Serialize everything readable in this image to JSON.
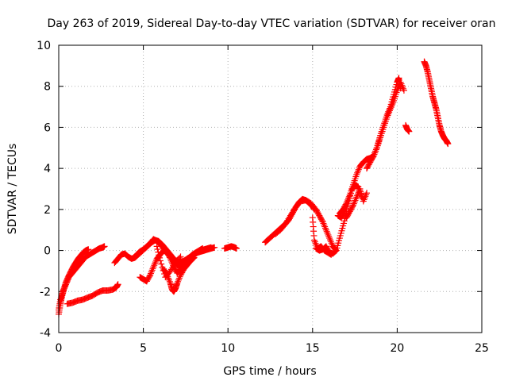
{
  "chart_data": {
    "type": "scatter",
    "title": "Day 263 of 2019, Sidereal Day-to-day VTEC variation (SDTVAR) for receiver oran",
    "xlabel": "GPS time / hours",
    "ylabel": "SDTVAR / TECUs",
    "xlim": [
      0,
      25
    ],
    "ylim": [
      -4,
      10
    ],
    "xticks": [
      "0",
      "5",
      "10",
      "15",
      "20",
      "25"
    ],
    "yticks": [
      "-4",
      "-2",
      "0",
      "2",
      "4",
      "6",
      "8",
      "10"
    ],
    "grid": true,
    "marker": "plus",
    "color": "#ff0000",
    "series": [
      {
        "x": [
          0.0,
          0.1,
          0.2,
          0.3,
          0.45,
          0.6,
          0.8,
          1.0,
          1.2,
          1.4,
          1.6,
          1.8,
          2.0,
          2.2,
          2.4,
          2.6,
          2.7
        ],
        "y": [
          -3.1,
          -2.6,
          -2.2,
          -1.9,
          -1.6,
          -1.3,
          -1.1,
          -0.9,
          -0.7,
          -0.5,
          -0.3,
          -0.2,
          -0.1,
          0.0,
          0.1,
          0.15,
          0.2
        ]
      },
      {
        "x": [
          0.0,
          0.1,
          0.25,
          0.4,
          0.55,
          0.7,
          0.85,
          1.0,
          1.15,
          1.3,
          1.45,
          1.6,
          1.75
        ],
        "y": [
          -2.9,
          -2.4,
          -2.0,
          -1.6,
          -1.3,
          -1.05,
          -0.8,
          -0.6,
          -0.4,
          -0.25,
          -0.1,
          0.0,
          0.05
        ]
      },
      {
        "x": [
          0.5,
          0.8,
          1.1,
          1.4,
          1.7,
          2.0,
          2.3,
          2.6,
          2.9,
          3.2,
          3.4,
          3.5
        ],
        "y": [
          -2.6,
          -2.55,
          -2.45,
          -2.4,
          -2.3,
          -2.2,
          -2.05,
          -1.95,
          -1.95,
          -1.9,
          -1.8,
          -1.65
        ]
      },
      {
        "x": [
          3.3,
          3.5,
          3.7,
          3.9,
          4.1,
          4.3,
          4.5,
          4.7,
          4.9,
          5.1,
          5.3,
          5.5,
          5.7,
          5.9,
          6.1,
          6.3,
          6.5,
          6.7,
          6.9,
          7.1,
          7.3,
          7.5,
          7.7,
          7.9,
          8.1,
          8.3,
          8.5
        ],
        "y": [
          -0.6,
          -0.4,
          -0.2,
          -0.15,
          -0.3,
          -0.4,
          -0.35,
          -0.2,
          -0.05,
          0.1,
          0.25,
          0.4,
          0.5,
          0.45,
          0.3,
          0.1,
          -0.1,
          -0.3,
          -0.5,
          -0.6,
          -0.55,
          -0.45,
          -0.35,
          -0.2,
          -0.1,
          0.0,
          0.1
        ]
      },
      {
        "x": [
          4.6,
          4.8,
          5.0,
          5.2,
          5.4,
          5.6,
          5.8,
          6.0,
          6.2,
          6.4,
          6.6,
          6.8,
          7.0,
          7.2,
          7.4,
          7.6,
          7.8,
          8.0,
          8.2,
          8.4,
          8.6,
          8.8,
          9.0
        ],
        "y": [
          -0.2,
          -0.05,
          0.05,
          0.2,
          0.35,
          0.55,
          0.45,
          0.3,
          0.1,
          -0.1,
          -0.3,
          -0.5,
          -0.7,
          -0.75,
          -0.6,
          -0.45,
          -0.3,
          -0.2,
          -0.1,
          0.0,
          0.05,
          0.1,
          0.15
        ]
      },
      {
        "x": [
          4.8,
          5.0,
          5.2,
          5.4,
          5.6,
          5.8,
          6.0,
          6.2,
          6.4,
          6.6,
          6.8,
          7.0,
          7.2,
          7.4,
          7.6,
          7.8,
          8.0,
          8.2,
          8.4,
          8.6,
          8.8,
          9.0,
          9.2
        ],
        "y": [
          -1.3,
          -1.4,
          -1.5,
          -1.2,
          -0.8,
          -0.4,
          -0.2,
          0.0,
          -0.1,
          -0.4,
          -0.8,
          -1.1,
          -0.9,
          -0.6,
          -0.4,
          -0.3,
          -0.2,
          -0.1,
          -0.05,
          0.0,
          0.05,
          0.1,
          0.15
        ]
      },
      {
        "x": [
          6.2,
          6.4,
          6.6,
          6.7,
          6.8,
          6.9,
          7.0,
          7.2,
          7.4,
          7.6,
          7.8,
          8.0
        ],
        "y": [
          -0.9,
          -1.2,
          -1.6,
          -1.9,
          -2.0,
          -1.85,
          -1.6,
          -1.2,
          -0.9,
          -0.7,
          -0.5,
          -0.35
        ]
      },
      {
        "x": [
          5.8,
          6.0,
          6.3,
          6.6,
          6.9,
          7.2
        ],
        "y": [
          0.2,
          -0.5,
          -1.3,
          -1.0,
          -0.6,
          -0.3
        ]
      },
      {
        "x": [
          9.8,
          10.0,
          10.2,
          10.4,
          10.5
        ],
        "y": [
          0.1,
          0.15,
          0.2,
          0.15,
          0.1
        ]
      },
      {
        "x": [
          12.2,
          12.4,
          12.6,
          12.8,
          13.0,
          13.2,
          13.4,
          13.6,
          13.8,
          14.0,
          14.2,
          14.4,
          14.6,
          14.8,
          15.0,
          15.1
        ],
        "y": [
          0.4,
          0.55,
          0.7,
          0.85,
          1.0,
          1.15,
          1.3,
          1.5,
          1.8,
          2.1,
          2.35,
          2.5,
          2.45,
          2.3,
          2.15,
          2.0
        ]
      },
      {
        "x": [
          12.8,
          13.1,
          13.4,
          13.7,
          14.0,
          14.3,
          14.6,
          14.9,
          15.2,
          15.4,
          15.6,
          15.8,
          16.0,
          16.2,
          16.4
        ],
        "y": [
          0.8,
          1.0,
          1.3,
          1.7,
          2.1,
          2.4,
          2.45,
          2.3,
          2.0,
          1.7,
          1.4,
          1.0,
          0.6,
          0.2,
          0.0
        ]
      },
      {
        "x": [
          15.0,
          15.1,
          15.3,
          15.5,
          15.7,
          15.9,
          16.1
        ],
        "y": [
          1.6,
          0.5,
          0.1,
          0.2,
          0.0,
          -0.1,
          -0.2
        ]
      },
      {
        "x": [
          15.2,
          15.4,
          15.6,
          15.8,
          16.0,
          16.2,
          16.4,
          16.6,
          16.8,
          17.0
        ],
        "y": [
          0.1,
          0.0,
          0.05,
          0.2,
          -0.1,
          -0.15,
          0.0,
          0.6,
          1.2,
          1.8
        ]
      },
      {
        "x": [
          16.5,
          16.7,
          16.9,
          17.1,
          17.3,
          17.5,
          17.7,
          17.9
        ],
        "y": [
          1.7,
          1.6,
          1.9,
          2.3,
          2.9,
          3.2,
          3.1,
          2.6
        ]
      },
      {
        "x": [
          16.6,
          16.8,
          17.0,
          17.2,
          17.4,
          17.6,
          17.8,
          18.0,
          18.2,
          18.4,
          18.6,
          18.8,
          19.0,
          19.2,
          19.4,
          19.6,
          19.8,
          20.0,
          20.1,
          20.2
        ],
        "y": [
          1.8,
          2.0,
          2.3,
          2.7,
          3.2,
          3.7,
          4.1,
          4.3,
          4.45,
          4.5,
          4.6,
          5.0,
          5.6,
          6.1,
          6.6,
          7.0,
          7.6,
          8.2,
          8.4,
          7.9
        ]
      },
      {
        "x": [
          18.2,
          18.4,
          18.6,
          18.8,
          19.0,
          19.2,
          19.4,
          19.6,
          19.8,
          20.0,
          20.2,
          20.4
        ],
        "y": [
          4.0,
          4.3,
          4.6,
          5.0,
          5.5,
          6.0,
          6.5,
          6.9,
          7.3,
          7.8,
          8.2,
          7.8
        ]
      },
      {
        "x": [
          17.0,
          17.2,
          17.4,
          17.6,
          17.8,
          18.0,
          18.2
        ],
        "y": [
          1.6,
          1.9,
          2.2,
          2.6,
          3.0,
          2.4,
          2.8
        ]
      },
      {
        "x": [
          20.5,
          20.6,
          20.7
        ],
        "y": [
          6.1,
          5.9,
          5.8
        ]
      },
      {
        "x": [
          21.6,
          21.7,
          21.8,
          21.9,
          22.0,
          22.1,
          22.2,
          22.3,
          22.4,
          22.5,
          22.6,
          22.7,
          22.8,
          22.9,
          23.0
        ],
        "y": [
          9.2,
          9.0,
          8.7,
          8.3,
          7.9,
          7.5,
          7.2,
          6.9,
          6.5,
          6.1,
          5.8,
          5.6,
          5.45,
          5.35,
          5.2
        ]
      }
    ]
  }
}
